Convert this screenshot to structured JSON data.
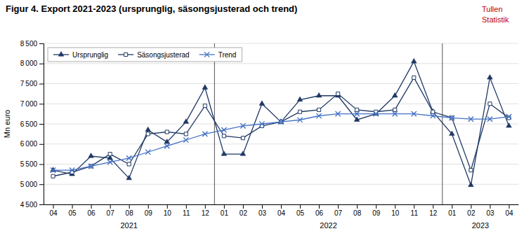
{
  "chart_data": {
    "type": "line",
    "title": "Figur 4. Export 2021-2023  (ursprunglig, säsongsjusterad  och trend)",
    "y_label": "Mn euro",
    "categories": [
      "04",
      "05",
      "06",
      "07",
      "08",
      "09",
      "10",
      "11",
      "12",
      "01",
      "02",
      "03",
      "04",
      "05",
      "06",
      "07",
      "08",
      "09",
      "10",
      "11",
      "12",
      "01",
      "02",
      "03",
      "04"
    ],
    "series": [
      {
        "name": "Ursprunglig",
        "color": "#1F3864",
        "marker": "triangle",
        "values": [
          5350,
          5250,
          5700,
          5650,
          5150,
          6350,
          6050,
          6550,
          7400,
          5750,
          5750,
          7000,
          6550,
          7100,
          7200,
          7200,
          6600,
          6750,
          7200,
          8050,
          6800,
          6250,
          4980,
          7650,
          6450
        ]
      },
      {
        "name": "Säsongsjusterad",
        "color": "#1F3864",
        "marker": "square",
        "values": [
          5200,
          5300,
          5450,
          5750,
          5500,
          6250,
          6300,
          6250,
          6950,
          6200,
          6150,
          6450,
          6550,
          6800,
          6850,
          7250,
          6850,
          6800,
          6850,
          7650,
          6800,
          6650,
          5350,
          7000,
          6650
        ]
      },
      {
        "name": "Trend",
        "color": "#4472C4",
        "marker": "x",
        "values": [
          5350,
          5350,
          5450,
          5550,
          5650,
          5800,
          5950,
          6100,
          6250,
          6350,
          6450,
          6500,
          6550,
          6600,
          6700,
          6750,
          6750,
          6750,
          6750,
          6750,
          6700,
          6650,
          6620,
          6620,
          6680
        ]
      }
    ],
    "ylim": [
      4500,
      8500
    ],
    "yticks": [
      {
        "value": 4500,
        "label": "4 500"
      },
      {
        "value": 5000,
        "label": "5 000"
      },
      {
        "value": 5500,
        "label": "5 500"
      },
      {
        "value": 6000,
        "label": "6 000"
      },
      {
        "value": 6500,
        "label": "6 500"
      },
      {
        "value": 7000,
        "label": "7 000"
      },
      {
        "value": 7500,
        "label": "7 500"
      },
      {
        "value": 8000,
        "label": "8 000"
      },
      {
        "value": 8500,
        "label": "8 500"
      }
    ],
    "separators": [
      8.5,
      20.5
    ],
    "annotations": [
      {
        "text": "Tullen",
        "color": "#C00000"
      },
      {
        "text": "Statistik",
        "color": "#C00000"
      },
      {
        "text": "2021",
        "x": 4.0
      },
      {
        "text": "2022",
        "x": 14.5
      },
      {
        "text": "2023",
        "x": 22.5
      }
    ],
    "grid": true,
    "legend": "upper left"
  }
}
